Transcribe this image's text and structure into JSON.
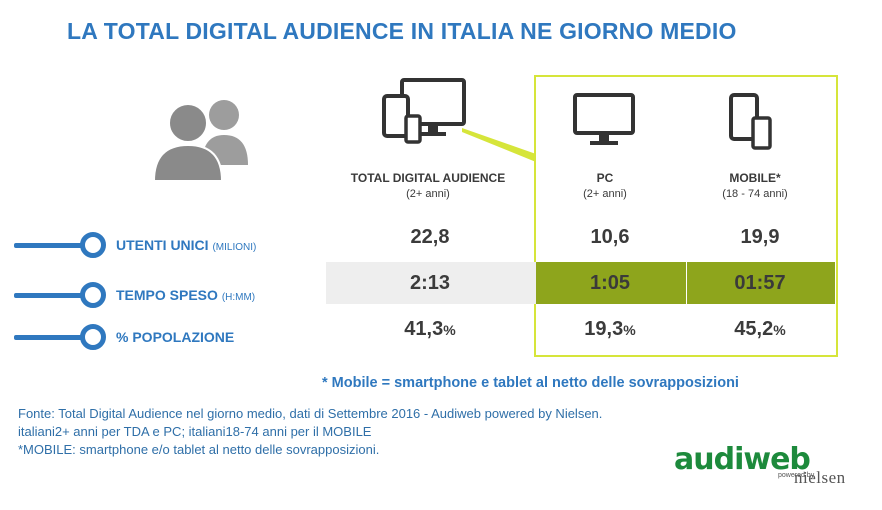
{
  "title": "LA TOTAL DIGITAL AUDIENCE IN ITALIA NE GIORNO MEDIO",
  "columns": [
    {
      "name": "TOTAL DIGITAL AUDIENCE",
      "sub": "(2+ anni)"
    },
    {
      "name": "PC",
      "sub": "(2+ anni)"
    },
    {
      "name": "MOBILE*",
      "sub": "(18 - 74 anni)"
    }
  ],
  "rows": [
    {
      "label": "UTENTI UNICI",
      "unit": "(MILIONI)",
      "values": [
        "22,8",
        "10,6",
        "19,9"
      ],
      "suffix": ""
    },
    {
      "label": "TEMPO SPESO",
      "unit": "(H:MM)",
      "values": [
        "2:13",
        "1:05",
        "01:57"
      ],
      "suffix": ""
    },
    {
      "label": "% POPOLAZIONE",
      "unit": "",
      "values": [
        "41,3",
        "19,3",
        "45,2"
      ],
      "suffix": "%"
    }
  ],
  "note": "* Mobile = smartphone e tablet al netto delle sovrapposizioni",
  "source": [
    "Fonte: Total Digital Audience nel giorno medio, dati di Settembre 2016 - Audiweb powered by Nielsen.",
    "italiani2+ anni per TDA e PC; italiani18-74 anni per il MOBILE",
    "*MOBILE: smartphone e/o tablet al netto delle sovrapposizioni."
  ],
  "logo": {
    "main": "audiweb",
    "powered": "powered by",
    "brand": "nielsen"
  },
  "icons": {
    "users": "users-icon",
    "all_devices": "devices-icon",
    "pc": "monitor-icon",
    "mobile": "tablet-phone-icon"
  },
  "colors": {
    "title": "#2f78bf",
    "highlight": "#d6e53a",
    "band_gray": "#eeeeee",
    "band_green": "#8ea51c",
    "logo": "#1d8a3c"
  }
}
